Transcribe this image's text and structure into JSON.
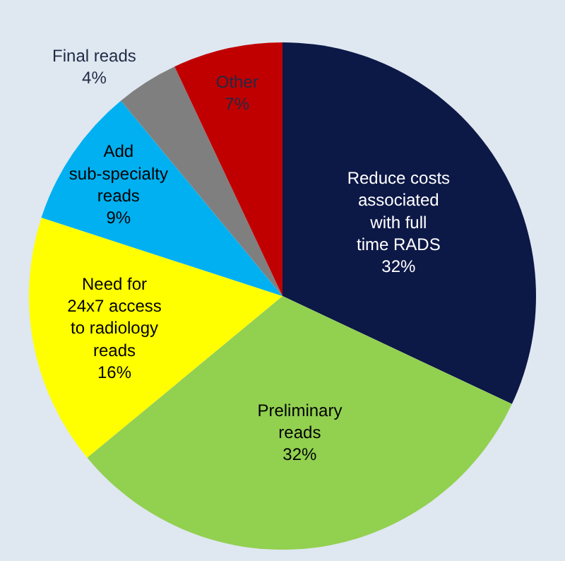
{
  "chart_data": {
    "type": "pie",
    "categories": [
      "Reduce costs associated with full time RADS",
      "Preliminary reads",
      "Need for 24x7 access to radiology reads",
      "Add sub-specialty reads",
      "Final reads",
      "Other"
    ],
    "values": [
      32,
      32,
      16,
      9,
      4,
      7
    ],
    "value_labels": [
      "32%",
      "32%",
      "16%",
      "9%",
      "4%",
      "7%"
    ],
    "colors": [
      "#0c1846",
      "#92d050",
      "#ffff00",
      "#00b0f0",
      "#7f7f7f",
      "#c00000"
    ],
    "legend": false
  }
}
